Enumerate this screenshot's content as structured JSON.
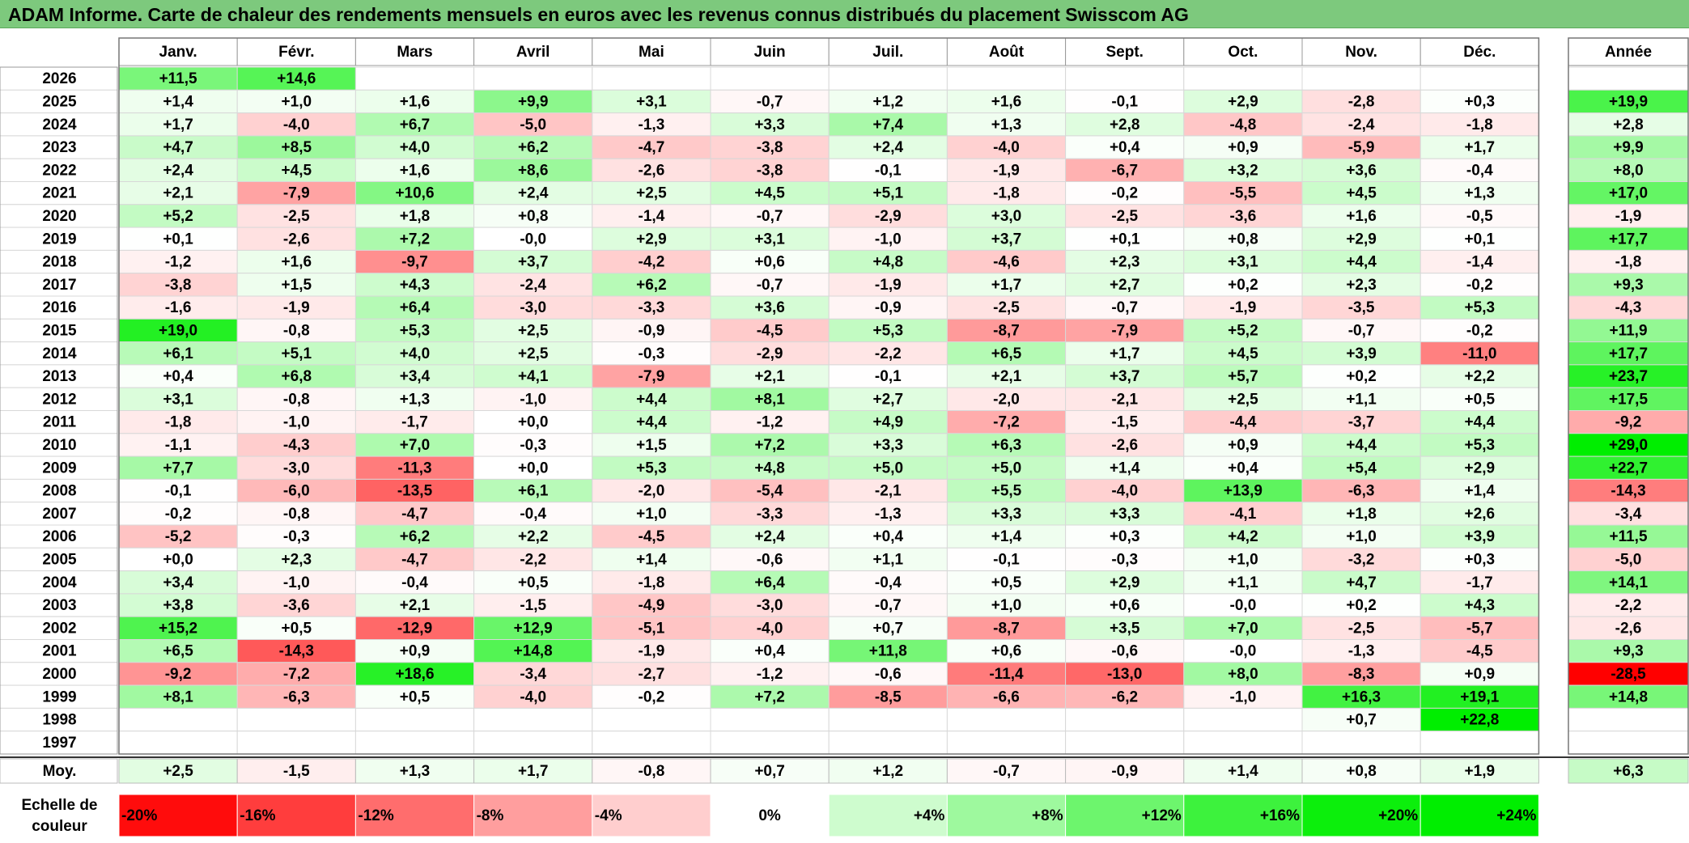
{
  "title": "ADAM Informe. Carte de chaleur des rendements mensuels en euros avec les revenus connus distribués du placement Swisscom AG",
  "chart_data": {
    "type": "heatmap",
    "columns": [
      "Janv.",
      "Févr.",
      "Mars",
      "Avril",
      "Mai",
      "Juin",
      "Juil.",
      "Août",
      "Sept.",
      "Oct.",
      "Nov.",
      "Déc."
    ],
    "year_column": "Année",
    "rows": [
      {
        "year": "2026",
        "months": [
          "+11,5",
          "+14,6",
          "",
          "",
          "",
          "",
          "",
          "",
          "",
          "",
          "",
          ""
        ],
        "annual": ""
      },
      {
        "year": "2025",
        "months": [
          "+1,4",
          "+1,0",
          "+1,6",
          "+9,9",
          "+3,1",
          "-0,7",
          "+1,2",
          "+1,6",
          "-0,1",
          "+2,9",
          "-2,8",
          "+0,3"
        ],
        "annual": "+19,9"
      },
      {
        "year": "2024",
        "months": [
          "+1,7",
          "-4,0",
          "+6,7",
          "-5,0",
          "-1,3",
          "+3,3",
          "+7,4",
          "+1,3",
          "+2,8",
          "-4,8",
          "-2,4",
          "-1,8"
        ],
        "annual": "+2,8"
      },
      {
        "year": "2023",
        "months": [
          "+4,7",
          "+8,5",
          "+4,0",
          "+6,2",
          "-4,7",
          "-3,8",
          "+2,4",
          "-4,0",
          "+0,4",
          "+0,9",
          "-5,9",
          "+1,7"
        ],
        "annual": "+9,9"
      },
      {
        "year": "2022",
        "months": [
          "+2,4",
          "+4,5",
          "+1,6",
          "+8,6",
          "-2,6",
          "-3,8",
          "-0,1",
          "-1,9",
          "-6,7",
          "+3,2",
          "+3,6",
          "-0,4"
        ],
        "annual": "+8,0"
      },
      {
        "year": "2021",
        "months": [
          "+2,1",
          "-7,9",
          "+10,6",
          "+2,4",
          "+2,5",
          "+4,5",
          "+5,1",
          "-1,8",
          "-0,2",
          "-5,5",
          "+4,5",
          "+1,3"
        ],
        "annual": "+17,0"
      },
      {
        "year": "2020",
        "months": [
          "+5,2",
          "-2,5",
          "+1,8",
          "+0,8",
          "-1,4",
          "-0,7",
          "-2,9",
          "+3,0",
          "-2,5",
          "-3,6",
          "+1,6",
          "-0,5"
        ],
        "annual": "-1,9"
      },
      {
        "year": "2019",
        "months": [
          "+0,1",
          "-2,6",
          "+7,2",
          "-0,0",
          "+2,9",
          "+3,1",
          "-1,0",
          "+3,7",
          "+0,1",
          "+0,8",
          "+2,9",
          "+0,1"
        ],
        "annual": "+17,7"
      },
      {
        "year": "2018",
        "months": [
          "-1,2",
          "+1,6",
          "-9,7",
          "+3,7",
          "-4,2",
          "+0,6",
          "+4,8",
          "-4,6",
          "+2,3",
          "+3,1",
          "+4,4",
          "-1,4"
        ],
        "annual": "-1,8"
      },
      {
        "year": "2017",
        "months": [
          "-3,8",
          "+1,5",
          "+4,3",
          "-2,4",
          "+6,2",
          "-0,7",
          "-1,9",
          "+1,7",
          "+2,7",
          "+0,2",
          "+2,3",
          "-0,2"
        ],
        "annual": "+9,3"
      },
      {
        "year": "2016",
        "months": [
          "-1,6",
          "-1,9",
          "+6,4",
          "-3,0",
          "-3,3",
          "+3,6",
          "-0,9",
          "-2,5",
          "-0,7",
          "-1,9",
          "-3,5",
          "+5,3"
        ],
        "annual": "-4,3"
      },
      {
        "year": "2015",
        "months": [
          "+19,0",
          "-0,8",
          "+5,3",
          "+2,5",
          "-0,9",
          "-4,5",
          "+5,3",
          "-8,7",
          "-7,9",
          "+5,2",
          "-0,7",
          "-0,2"
        ],
        "annual": "+11,9"
      },
      {
        "year": "2014",
        "months": [
          "+6,1",
          "+5,1",
          "+4,0",
          "+2,5",
          "-0,3",
          "-2,9",
          "-2,2",
          "+6,5",
          "+1,7",
          "+4,5",
          "+3,9",
          "-11,0"
        ],
        "annual": "+17,7"
      },
      {
        "year": "2013",
        "months": [
          "+0,4",
          "+6,8",
          "+3,4",
          "+4,1",
          "-7,9",
          "+2,1",
          "-0,1",
          "+2,1",
          "+3,7",
          "+5,7",
          "+0,2",
          "+2,2"
        ],
        "annual": "+23,7"
      },
      {
        "year": "2012",
        "months": [
          "+3,1",
          "-0,8",
          "+1,3",
          "-1,0",
          "+4,4",
          "+8,1",
          "+2,7",
          "-2,0",
          "-2,1",
          "+2,5",
          "+1,1",
          "+0,5"
        ],
        "annual": "+17,5"
      },
      {
        "year": "2011",
        "months": [
          "-1,8",
          "-1,0",
          "-1,7",
          "+0,0",
          "+4,4",
          "-1,2",
          "+4,9",
          "-7,2",
          "-1,5",
          "-4,4",
          "-3,7",
          "+4,4"
        ],
        "annual": "-9,2"
      },
      {
        "year": "2010",
        "months": [
          "-1,1",
          "-4,3",
          "+7,0",
          "-0,3",
          "+1,5",
          "+7,2",
          "+3,3",
          "+6,3",
          "-2,6",
          "+0,9",
          "+4,4",
          "+5,3"
        ],
        "annual": "+29,0"
      },
      {
        "year": "2009",
        "months": [
          "+7,7",
          "-3,0",
          "-11,3",
          "+0,0",
          "+5,3",
          "+4,8",
          "+5,0",
          "+5,0",
          "+1,4",
          "+0,4",
          "+5,4",
          "+2,9"
        ],
        "annual": "+22,7"
      },
      {
        "year": "2008",
        "months": [
          "-0,1",
          "-6,0",
          "-13,5",
          "+6,1",
          "-2,0",
          "-5,4",
          "-2,1",
          "+5,5",
          "-4,0",
          "+13,9",
          "-6,3",
          "+1,4"
        ],
        "annual": "-14,3"
      },
      {
        "year": "2007",
        "months": [
          "-0,2",
          "-0,8",
          "-4,7",
          "-0,4",
          "+1,0",
          "-3,3",
          "-1,3",
          "+3,3",
          "+3,3",
          "-4,1",
          "+1,8",
          "+2,6"
        ],
        "annual": "-3,4"
      },
      {
        "year": "2006",
        "months": [
          "-5,2",
          "-0,3",
          "+6,2",
          "+2,2",
          "-4,5",
          "+2,4",
          "+0,4",
          "+1,4",
          "+0,3",
          "+4,2",
          "+1,0",
          "+3,9"
        ],
        "annual": "+11,5"
      },
      {
        "year": "2005",
        "months": [
          "+0,0",
          "+2,3",
          "-4,7",
          "-2,2",
          "+1,4",
          "-0,6",
          "+1,1",
          "-0,1",
          "-0,3",
          "+1,0",
          "-3,2",
          "+0,3"
        ],
        "annual": "-5,0"
      },
      {
        "year": "2004",
        "months": [
          "+3,4",
          "-1,0",
          "-0,4",
          "+0,5",
          "-1,8",
          "+6,4",
          "-0,4",
          "+0,5",
          "+2,9",
          "+1,1",
          "+4,7",
          "-1,7"
        ],
        "annual": "+14,1"
      },
      {
        "year": "2003",
        "months": [
          "+3,8",
          "-3,6",
          "+2,1",
          "-1,5",
          "-4,9",
          "-3,0",
          "-0,7",
          "+1,0",
          "+0,6",
          "-0,0",
          "+0,2",
          "+4,3"
        ],
        "annual": "-2,2"
      },
      {
        "year": "2002",
        "months": [
          "+15,2",
          "+0,5",
          "-12,9",
          "+12,9",
          "-5,1",
          "-4,0",
          "+0,7",
          "-8,7",
          "+3,5",
          "+7,0",
          "-2,5",
          "-5,7"
        ],
        "annual": "-2,6"
      },
      {
        "year": "2001",
        "months": [
          "+6,5",
          "-14,3",
          "+0,9",
          "+14,8",
          "-1,9",
          "+0,4",
          "+11,8",
          "+0,6",
          "-0,6",
          "-0,0",
          "-1,3",
          "-4,5"
        ],
        "annual": "+9,3"
      },
      {
        "year": "2000",
        "months": [
          "-9,2",
          "-7,2",
          "+18,6",
          "-3,4",
          "-2,7",
          "-1,2",
          "-0,6",
          "-11,4",
          "-13,0",
          "+8,0",
          "-8,3",
          "+0,9"
        ],
        "annual": "-28,5"
      },
      {
        "year": "1999",
        "months": [
          "+8,1",
          "-6,3",
          "+0,5",
          "-4,0",
          "-0,2",
          "+7,2",
          "-8,5",
          "-6,6",
          "-6,2",
          "-1,0",
          "+16,3",
          "+19,1"
        ],
        "annual": "+14,8"
      },
      {
        "year": "1998",
        "months": [
          "",
          "",
          "",
          "",
          "",
          "",
          "",
          "",
          "",
          "",
          "+0,7",
          "+22,8"
        ],
        "annual": ""
      },
      {
        "year": "1997",
        "months": [
          "",
          "",
          "",
          "",
          "",
          "",
          "",
          "",
          "",
          "",
          "",
          ""
        ],
        "annual": ""
      }
    ],
    "average": {
      "label": "Moy.",
      "months": [
        "+2,5",
        "-1,5",
        "+1,3",
        "+1,7",
        "-0,8",
        "+0,7",
        "+1,2",
        "-0,7",
        "-0,9",
        "+1,4",
        "+0,8",
        "+1,9"
      ],
      "annual": "+6,3"
    },
    "scale": {
      "label_line1": "Echelle de",
      "label_line2": "couleur",
      "steps": [
        "-20%",
        "-16%",
        "-12%",
        "-8%",
        "-4%",
        "0%",
        "+4%",
        "+8%",
        "+12%",
        "+16%",
        "+20%",
        "+24%"
      ]
    },
    "colors": {
      "negative_max": "#ff0000",
      "neutral": "#ffffff",
      "positive_max": "#00ee00",
      "title_bg": "#7dc97d"
    }
  }
}
